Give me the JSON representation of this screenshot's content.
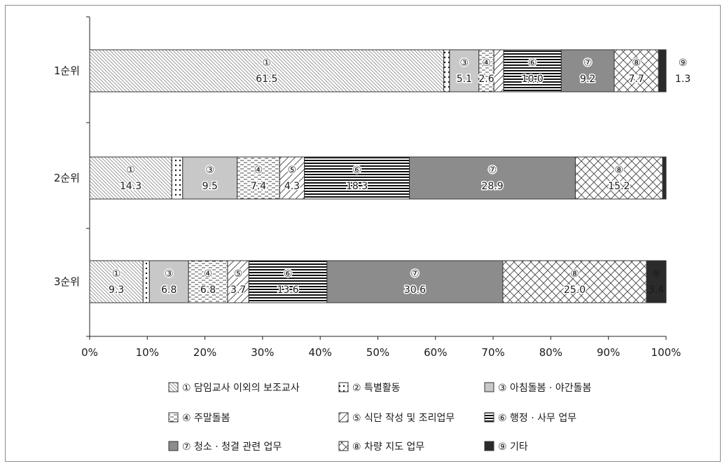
{
  "chart_data": {
    "type": "bar",
    "orientation": "horizontal",
    "stacked": true,
    "categories": [
      "1순위",
      "2순위",
      "3순위"
    ],
    "series": [
      {
        "name": "① 담임교사 이외의 보조교사",
        "marker": "①",
        "pattern": "diag-fine",
        "values": [
          61.5,
          14.3,
          9.3
        ]
      },
      {
        "name": "② 특별활동",
        "marker": "②",
        "pattern": "dots",
        "values": [
          1.0,
          1.9,
          1.1
        ]
      },
      {
        "name": "③ 아침돌봄 · 야간돌봄",
        "marker": "③",
        "pattern": "light-gray",
        "values": [
          5.1,
          9.5,
          6.8
        ]
      },
      {
        "name": "④ 주말돌봄",
        "marker": "④",
        "pattern": "dashes",
        "values": [
          2.6,
          7.4,
          6.8
        ]
      },
      {
        "name": "⑤ 식단 작성 및 조리업무",
        "marker": "⑤",
        "pattern": "diag-wide",
        "values": [
          1.7,
          4.3,
          3.7
        ]
      },
      {
        "name": "⑥ 행정 · 사무 업무",
        "marker": "⑥",
        "pattern": "hlines",
        "values": [
          10.0,
          18.3,
          13.6
        ]
      },
      {
        "name": "⑦ 청소 · 청결 관련 업무",
        "marker": "⑦",
        "pattern": "mid-gray",
        "values": [
          9.2,
          28.9,
          30.6
        ]
      },
      {
        "name": "⑧ 차량 지도 업무",
        "marker": "⑧",
        "pattern": "crosshatch",
        "values": [
          7.7,
          15.2,
          25.0
        ]
      },
      {
        "name": "⑨ 기타",
        "marker": "⑨",
        "pattern": "black",
        "values": [
          1.3,
          0.6,
          3.4
        ]
      }
    ],
    "segment_labels": [
      [
        {
          "series": 0,
          "marker": "①",
          "value": "61.5"
        },
        {
          "series": 2,
          "marker": "③",
          "value": "5.1"
        },
        {
          "series": 3,
          "marker": "④",
          "value": "2.6"
        },
        {
          "series": 5,
          "marker": "⑥",
          "value": "10.0"
        },
        {
          "series": 6,
          "marker": "⑦",
          "value": "9.2"
        },
        {
          "series": 7,
          "marker": "⑧",
          "value": "7.7"
        },
        {
          "series": 8,
          "marker": "⑨",
          "value": "1.3",
          "outside": true
        }
      ],
      [
        {
          "series": 0,
          "marker": "①",
          "value": "14.3"
        },
        {
          "series": 2,
          "marker": "③",
          "value": "9.5"
        },
        {
          "series": 3,
          "marker": "④",
          "value": "7.4"
        },
        {
          "series": 4,
          "marker": "⑤",
          "value": "4.3"
        },
        {
          "series": 5,
          "marker": "⑥",
          "value": "18.3"
        },
        {
          "series": 6,
          "marker": "⑦",
          "value": "28.9"
        },
        {
          "series": 7,
          "marker": "⑧",
          "value": "15.2"
        }
      ],
      [
        {
          "series": 0,
          "marker": "①",
          "value": "9.3"
        },
        {
          "series": 2,
          "marker": "③",
          "value": "6.8"
        },
        {
          "series": 3,
          "marker": "④",
          "value": "6.8"
        },
        {
          "series": 4,
          "marker": "⑤",
          "value": "3.7"
        },
        {
          "series": 5,
          "marker": "⑥",
          "value": "13.6"
        },
        {
          "series": 6,
          "marker": "⑦",
          "value": "30.6"
        },
        {
          "series": 7,
          "marker": "⑧",
          "value": "25.0"
        },
        {
          "series": 8,
          "marker": "⑨",
          "value": "3.4",
          "inverse": true
        }
      ]
    ],
    "x_ticks": [
      "0%",
      "10%",
      "20%",
      "30%",
      "40%",
      "50%",
      "60%",
      "70%",
      "80%",
      "90%",
      "100%"
    ],
    "xlim": [
      0,
      100
    ],
    "title": "",
    "xlabel": "",
    "ylabel": "",
    "grid": false,
    "legend_position": "bottom",
    "colors": {
      "light_gray": "#c8c8c8",
      "mid_gray": "#8c8c8c",
      "black": "#2b2b2b",
      "stroke": "#333333"
    }
  }
}
